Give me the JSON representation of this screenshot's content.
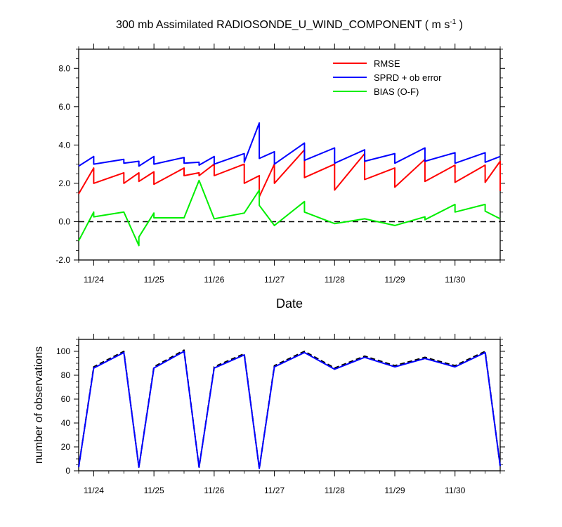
{
  "chart_data": [
    {
      "type": "line",
      "title": "300 mb Assimilated RADIOSONDE_U_WIND_COMPONENT ( m s",
      "title_sup": "-1",
      "title_close": " )",
      "xlabel": "Date",
      "ylabel": "",
      "xlim": [
        23.75,
        30.75
      ],
      "ylim": [
        -2.0,
        9.0
      ],
      "yticks": [
        -2.0,
        0.0,
        2.0,
        4.0,
        6.0,
        8.0
      ],
      "ytick_labels": [
        "-2.0",
        "0.0",
        "2.0",
        "4.0",
        "6.0",
        "8.0"
      ],
      "xticks": [
        24,
        25,
        26,
        27,
        28,
        29,
        30
      ],
      "xtick_labels": [
        "11/24",
        "11/25",
        "11/26",
        "11/27",
        "11/28",
        "11/29",
        "11/30"
      ],
      "legend_position": "top-right",
      "reference_line": {
        "y": 0.0,
        "style": "dashed",
        "color": "#000000"
      },
      "series": [
        {
          "name": "RMSE",
          "color": "#ff0000",
          "points": [
            [
              23.75,
              1.45
            ],
            [
              24.0,
              2.8
            ],
            [
              24.0,
              2.0
            ],
            [
              24.5,
              2.55
            ],
            [
              24.5,
              2.0
            ],
            [
              24.75,
              2.55
            ],
            [
              24.75,
              2.1
            ],
            [
              25.0,
              2.6
            ],
            [
              25.0,
              1.95
            ],
            [
              25.5,
              2.8
            ],
            [
              25.5,
              2.4
            ],
            [
              25.75,
              2.55
            ],
            [
              25.75,
              2.4
            ],
            [
              26.0,
              3.0
            ],
            [
              26.0,
              2.4
            ],
            [
              26.5,
              3.0
            ],
            [
              26.5,
              2.0
            ],
            [
              26.75,
              2.4
            ],
            [
              26.75,
              1.3
            ],
            [
              27.0,
              3.0
            ],
            [
              27.0,
              2.0
            ],
            [
              27.5,
              3.75
            ],
            [
              27.5,
              2.3
            ],
            [
              28.0,
              3.0
            ],
            [
              28.0,
              1.65
            ],
            [
              28.5,
              3.55
            ],
            [
              28.5,
              2.2
            ],
            [
              29.0,
              2.8
            ],
            [
              29.0,
              1.8
            ],
            [
              29.5,
              3.25
            ],
            [
              29.5,
              2.1
            ],
            [
              30.0,
              2.95
            ],
            [
              30.0,
              2.05
            ],
            [
              30.5,
              2.95
            ],
            [
              30.5,
              2.05
            ],
            [
              30.75,
              3.15
            ],
            [
              30.75,
              1.6
            ]
          ]
        },
        {
          "name": "SPRD + ob error",
          "color": "#0000ff",
          "points": [
            [
              23.75,
              2.9
            ],
            [
              24.0,
              3.4
            ],
            [
              24.0,
              3.0
            ],
            [
              24.5,
              3.25
            ],
            [
              24.5,
              3.05
            ],
            [
              24.75,
              3.15
            ],
            [
              24.75,
              2.9
            ],
            [
              25.0,
              3.4
            ],
            [
              25.0,
              3.0
            ],
            [
              25.5,
              3.35
            ],
            [
              25.5,
              3.05
            ],
            [
              25.75,
              3.1
            ],
            [
              25.75,
              2.95
            ],
            [
              26.0,
              3.4
            ],
            [
              26.0,
              3.0
            ],
            [
              26.5,
              3.55
            ],
            [
              26.5,
              3.1
            ],
            [
              26.75,
              5.15
            ],
            [
              26.75,
              3.3
            ],
            [
              27.0,
              3.65
            ],
            [
              27.0,
              3.0
            ],
            [
              27.5,
              4.1
            ],
            [
              27.5,
              3.2
            ],
            [
              28.0,
              3.85
            ],
            [
              28.0,
              3.05
            ],
            [
              28.5,
              3.75
            ],
            [
              28.5,
              3.15
            ],
            [
              29.0,
              3.55
            ],
            [
              29.0,
              3.05
            ],
            [
              29.5,
              3.85
            ],
            [
              29.5,
              3.15
            ],
            [
              30.0,
              3.6
            ],
            [
              30.0,
              3.05
            ],
            [
              30.5,
              3.6
            ],
            [
              30.5,
              3.1
            ],
            [
              30.75,
              3.4
            ]
          ]
        },
        {
          "name": "BIAS (O-F)",
          "color": "#00ee00",
          "points": [
            [
              23.75,
              -1.0
            ],
            [
              24.0,
              0.5
            ],
            [
              24.0,
              0.25
            ],
            [
              24.5,
              0.5
            ],
            [
              24.75,
              -1.25
            ],
            [
              24.75,
              -0.8
            ],
            [
              25.0,
              0.45
            ],
            [
              25.0,
              0.2
            ],
            [
              25.5,
              0.2
            ],
            [
              25.75,
              2.15
            ],
            [
              26.0,
              0.15
            ],
            [
              26.5,
              0.45
            ],
            [
              26.75,
              1.65
            ],
            [
              26.75,
              0.85
            ],
            [
              27.0,
              -0.2
            ],
            [
              27.5,
              1.05
            ],
            [
              27.5,
              0.5
            ],
            [
              28.0,
              -0.1
            ],
            [
              28.5,
              0.15
            ],
            [
              29.0,
              -0.2
            ],
            [
              29.5,
              0.25
            ],
            [
              29.5,
              0.1
            ],
            [
              30.0,
              0.9
            ],
            [
              30.0,
              0.5
            ],
            [
              30.5,
              0.9
            ],
            [
              30.5,
              0.55
            ],
            [
              30.75,
              0.15
            ]
          ]
        }
      ]
    },
    {
      "type": "line",
      "title": "",
      "xlabel": "",
      "ylabel": "number of observations",
      "xlim": [
        23.75,
        30.75
      ],
      "ylim": [
        0,
        110
      ],
      "yticks": [
        0,
        20,
        40,
        60,
        80,
        100
      ],
      "ytick_labels": [
        "0",
        "20",
        "40",
        "60",
        "80",
        "100"
      ],
      "xticks": [
        24,
        25,
        26,
        27,
        28,
        29,
        30
      ],
      "xtick_labels": [
        "11/24",
        "11/25",
        "11/26",
        "11/27",
        "11/28",
        "11/29",
        "11/30"
      ],
      "series": [
        {
          "name": "",
          "color": "#000000",
          "style": "dashed",
          "points": [
            [
              23.75,
              3
            ],
            [
              24.0,
              87
            ],
            [
              24.5,
              100
            ],
            [
              24.75,
              3
            ],
            [
              25.0,
              87
            ],
            [
              25.5,
              101
            ],
            [
              25.75,
              3
            ],
            [
              26.0,
              87
            ],
            [
              26.5,
              98
            ],
            [
              26.75,
              2
            ],
            [
              27.0,
              88
            ],
            [
              27.5,
              100
            ],
            [
              28.0,
              86
            ],
            [
              28.5,
              96
            ],
            [
              29.0,
              88
            ],
            [
              29.5,
              95
            ],
            [
              30.0,
              88
            ],
            [
              30.5,
              100
            ],
            [
              30.75,
              4
            ]
          ]
        },
        {
          "name": "",
          "color": "#0000ff",
          "style": "solid",
          "points": [
            [
              23.75,
              3
            ],
            [
              24.0,
              86
            ],
            [
              24.5,
              99
            ],
            [
              24.75,
              3
            ],
            [
              25.0,
              86
            ],
            [
              25.5,
              100
            ],
            [
              25.75,
              3
            ],
            [
              26.0,
              86
            ],
            [
              26.5,
              97
            ],
            [
              26.75,
              2
            ],
            [
              27.0,
              87
            ],
            [
              27.5,
              99
            ],
            [
              28.0,
              85
            ],
            [
              28.5,
              95
            ],
            [
              29.0,
              87
            ],
            [
              29.5,
              94
            ],
            [
              30.0,
              87
            ],
            [
              30.5,
              99
            ],
            [
              30.75,
              4
            ]
          ]
        }
      ]
    }
  ]
}
